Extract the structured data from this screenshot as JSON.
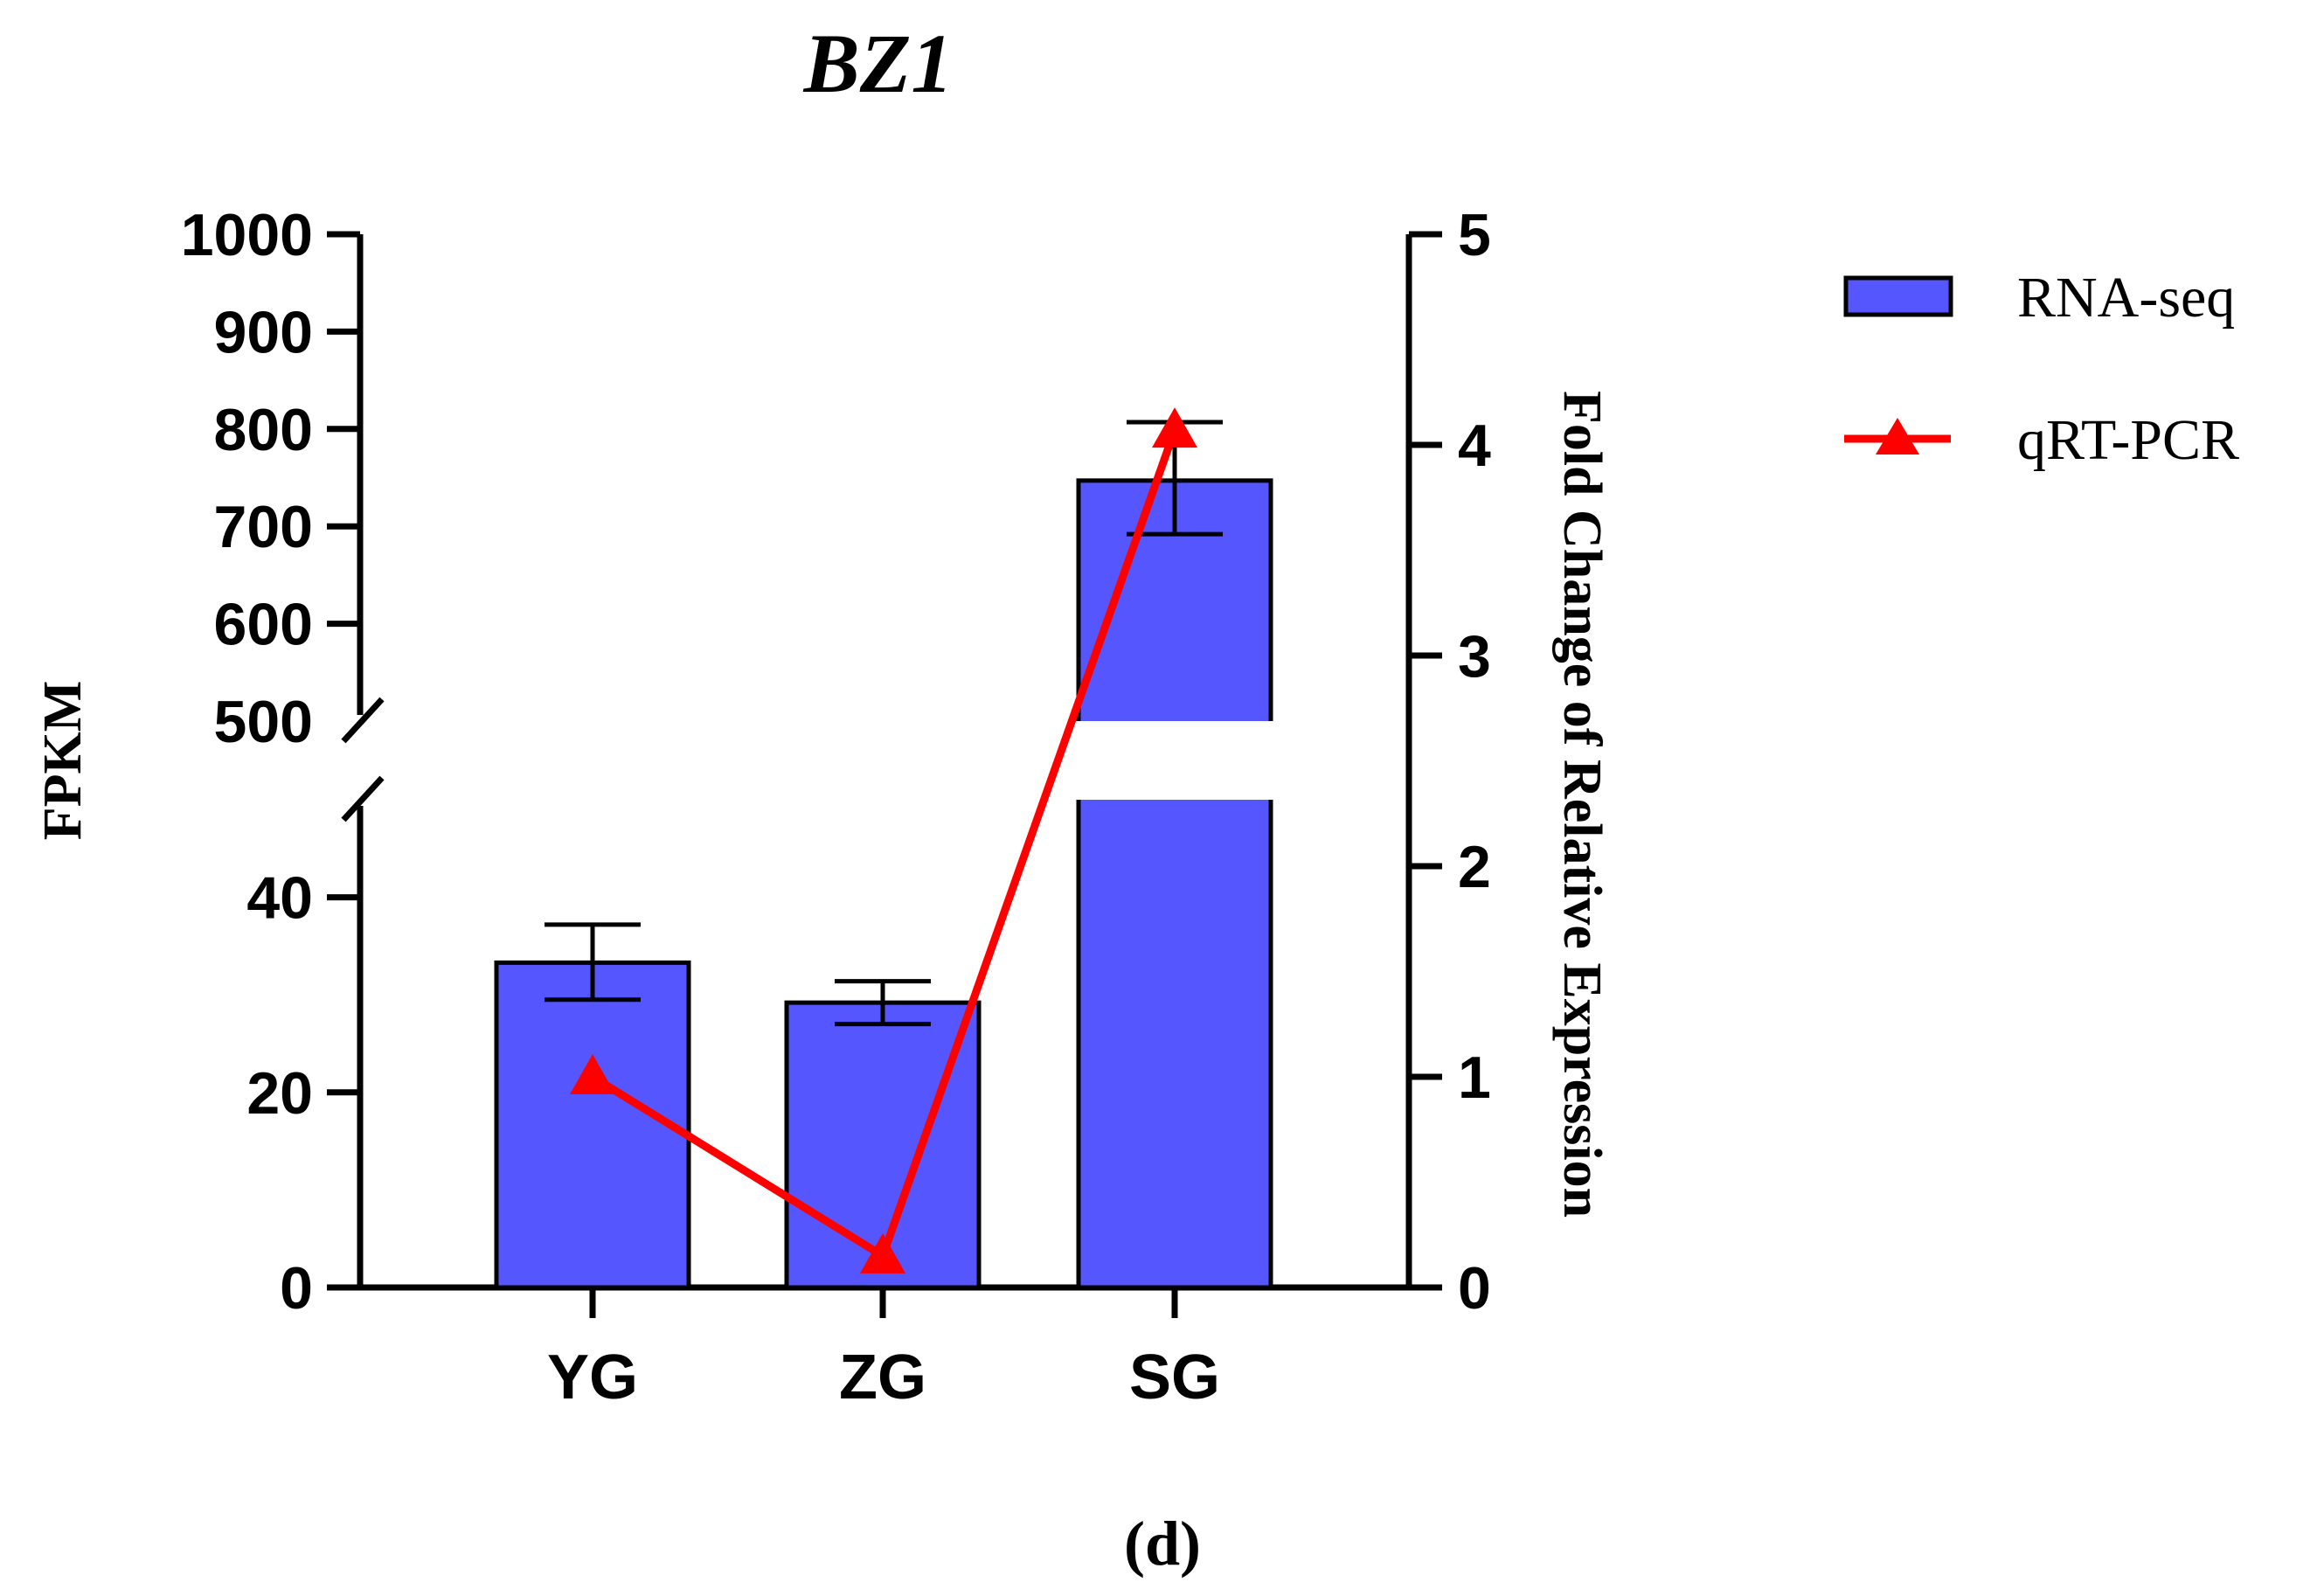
{
  "chart_data": {
    "type": "bar",
    "title": "BZ1",
    "panel_label": "(d)",
    "categories": [
      "YG",
      "ZG",
      "SG"
    ],
    "left_axis": {
      "label": "FPKM",
      "broken": true,
      "lower_range": [
        0,
        50
      ],
      "upper_range": [
        500,
        1000
      ],
      "lower_ticks": [
        0,
        20,
        40
      ],
      "upper_ticks": [
        500,
        600,
        700,
        800,
        900,
        1000
      ]
    },
    "right_axis": {
      "label": "Fold Change of Relative Expression",
      "range": [
        0,
        5
      ],
      "ticks": [
        0,
        1,
        2,
        3,
        4,
        5
      ]
    },
    "series": [
      {
        "name": "RNA-seq",
        "kind": "bar",
        "axis": "left",
        "color": "#5656ff",
        "values": [
          33.3,
          29.2,
          747
        ],
        "error": [
          [
            29.5,
            37.2
          ],
          [
            27.0,
            31.4
          ],
          [
            692,
            807
          ]
        ]
      },
      {
        "name": "qRT-PCR",
        "kind": "line",
        "axis": "right",
        "color": "#ff0000",
        "marker": "triangle",
        "values": [
          1.0,
          0.15,
          4.07
        ]
      }
    ],
    "legend_position": "top-right"
  }
}
